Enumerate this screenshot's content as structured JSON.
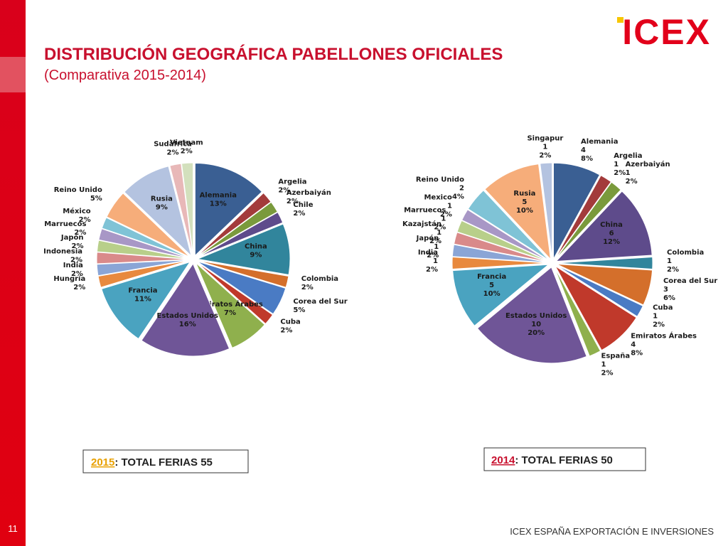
{
  "header": {
    "title": "DISTRIBUCIÓN GEOGRÁFICA PABELLONES OFICIALES",
    "subtitle": "(Comparativa 2015-2014)",
    "logo": "ICEX"
  },
  "footer": {
    "page": "11",
    "text": "ICEX ESPAÑA EXPORTACIÓN E INVERSIONES"
  },
  "totals": [
    {
      "year": "2015",
      "label": ": TOTAL FERIAS 55"
    },
    {
      "year": "2014",
      "label": ": TOTAL FERIAS 50"
    }
  ],
  "chart_data": [
    {
      "type": "pie",
      "categories": [
        "Alemania",
        "Argelia",
        "Azerbaiyán",
        "Chile",
        "China",
        "Colombia",
        "Corea del Sur",
        "Cuba",
        "Emiratos Árabes",
        "Estados Unidos",
        "Francia",
        "Hungría",
        "India",
        "Indonesia",
        "Japón",
        "Marruecos",
        "México",
        "Reino Unido",
        "Rusia",
        "Sudáfrica",
        "Vietnam"
      ],
      "values": [
        13,
        2,
        2,
        2,
        9,
        2,
        5,
        2,
        7,
        16,
        11,
        2,
        2,
        2,
        2,
        2,
        2,
        5,
        9,
        2,
        2
      ],
      "value_labels": [
        "13%",
        "2%",
        "2%",
        "2%",
        "9%",
        "2%",
        "5%",
        "2%",
        "7%",
        "16%",
        "11%",
        "2%",
        "2%",
        "2%",
        "2%",
        "2%",
        "2%",
        "5%",
        "9%",
        "2%",
        "2%"
      ],
      "colors": [
        "#3a5f93",
        "#a33b3b",
        "#7a9a3c",
        "#5e4b8b",
        "#31859c",
        "#d46f2b",
        "#4a7bc4",
        "#c0392b",
        "#8fb04d",
        "#6f5597",
        "#4aa3c0",
        "#e8893e",
        "#8aa5d6",
        "#d98a8a",
        "#b8cf8a",
        "#a897c6",
        "#7fc3d6",
        "#f6ad7a",
        "#b4c3e0",
        "#e8b8b8",
        "#d3e0bd"
      ]
    },
    {
      "type": "pie",
      "categories": [
        "Alemania",
        "Argelia",
        "Azerbaiyán",
        "China",
        "Colombia",
        "Corea del Sur",
        "Cuba",
        "Emiratos Árabes",
        "España",
        "Estados Unidos",
        "Francia",
        "India",
        "Japón",
        "Kazajstán",
        "Marruecos",
        "Mexico",
        "Reino Unido",
        "Rusia",
        "Singapur"
      ],
      "values": [
        4,
        1,
        1,
        6,
        1,
        3,
        1,
        4,
        1,
        10,
        5,
        1,
        1,
        1,
        1,
        1,
        2,
        5,
        1
      ],
      "percent_labels": [
        "8%",
        "2%",
        "2%",
        "12%",
        "2%",
        "6%",
        "2%",
        "8%",
        "2%",
        "20%",
        "10%",
        "2%",
        "2%",
        "2%",
        "2%",
        "2%",
        "4%",
        "10%",
        "2%"
      ],
      "colors": [
        "#3a5f93",
        "#a33b3b",
        "#7a9a3c",
        "#5e4b8b",
        "#31859c",
        "#d46f2b",
        "#4a7bc4",
        "#c0392b",
        "#8fb04d",
        "#6f5597",
        "#4aa3c0",
        "#e8893e",
        "#8aa5d6",
        "#d98a8a",
        "#b8cf8a",
        "#a897c6",
        "#7fc3d6",
        "#f6ad7a",
        "#b4c3e0"
      ]
    }
  ]
}
